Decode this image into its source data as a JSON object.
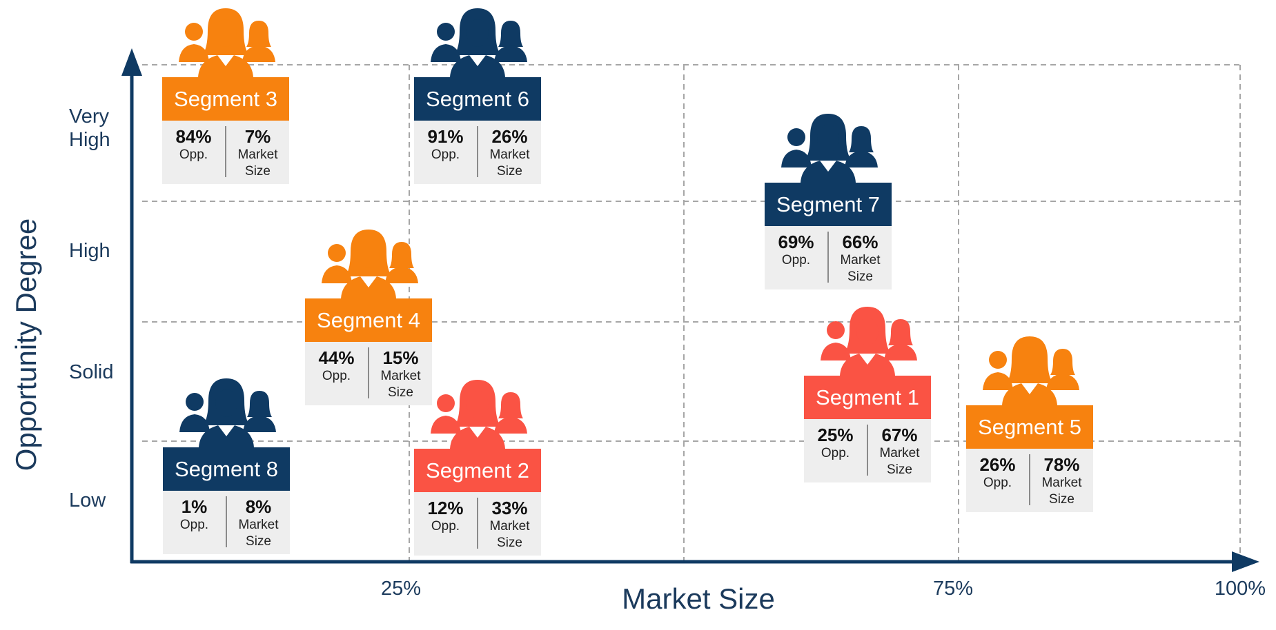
{
  "chart_data": {
    "type": "scatter",
    "xlabel": "Market Size",
    "ylabel": "Opportunity Degree",
    "x_ticks": [
      "25%",
      "75%",
      "100%"
    ],
    "y_levels": [
      "Very High",
      "High",
      "Solid",
      "Low"
    ],
    "segments": [
      {
        "name": "Segment 3",
        "opp": "84%",
        "market": "7%",
        "x": 7,
        "y": 84,
        "color": "#f7820f"
      },
      {
        "name": "Segment 6",
        "opp": "91%",
        "market": "26%",
        "x": 26,
        "y": 91,
        "color": "#0f3a63"
      },
      {
        "name": "Segment 7",
        "opp": "69%",
        "market": "66%",
        "x": 66,
        "y": 69,
        "color": "#0f3a63"
      },
      {
        "name": "Segment 4",
        "opp": "44%",
        "market": "15%",
        "x": 15,
        "y": 44,
        "color": "#f7820f"
      },
      {
        "name": "Segment 1",
        "opp": "25%",
        "market": "67%",
        "x": 67,
        "y": 25,
        "color": "#fa5344"
      },
      {
        "name": "Segment 5",
        "opp": "26%",
        "market": "78%",
        "x": 78,
        "y": 26,
        "color": "#f7820f"
      },
      {
        "name": "Segment 8",
        "opp": "1%",
        "market": "8%",
        "x": 8,
        "y": 1,
        "color": "#0f3a63"
      },
      {
        "name": "Segment 2",
        "opp": "12%",
        "market": "33%",
        "x": 33,
        "y": 12,
        "color": "#fa5344"
      }
    ],
    "stat_labels": {
      "opp": "Opp.",
      "market_line1": "Market",
      "market_line2": "Size"
    },
    "grid": true
  },
  "colors": {
    "axis": "#0f3a63",
    "grid": "#a6a6a6",
    "text": "#1b3a5c"
  }
}
